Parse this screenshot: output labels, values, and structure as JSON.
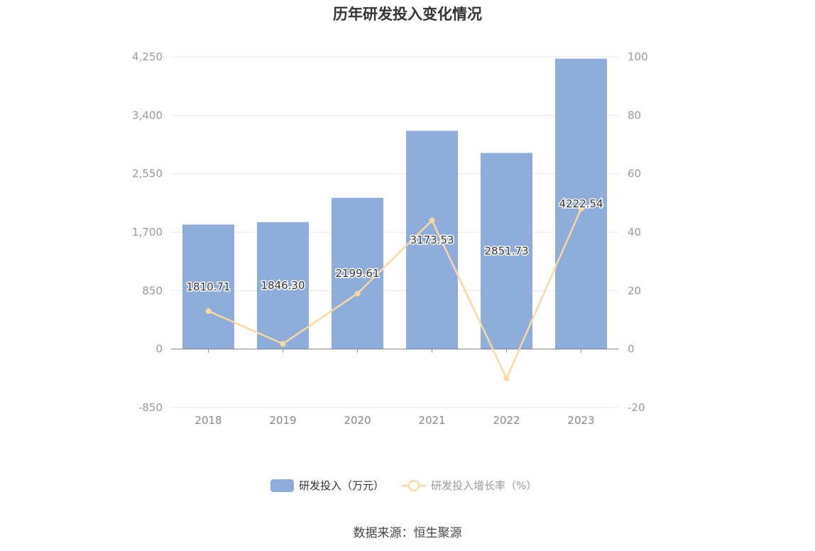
{
  "title": "历年研发投入变化情况",
  "source": "数据来源：恒生聚源",
  "colors": {
    "bar": "#8eadda",
    "line": "#fbd8a0",
    "grid": "#e3e6ef",
    "axis": "#888888"
  },
  "chart_data": {
    "type": "bar",
    "categories": [
      "2018",
      "2019",
      "2020",
      "2021",
      "2022",
      "2023"
    ],
    "series": [
      {
        "name": "研发投入（万元）",
        "type": "bar",
        "axis": "left",
        "values": [
          1810.71,
          1846.3,
          2199.61,
          3173.53,
          2851.73,
          4222.54
        ],
        "labels": [
          "1810.71",
          "1846.30",
          "2199.61",
          "3173.53",
          "2851.73",
          "4222.54"
        ]
      },
      {
        "name": "研发投入增长率（%）",
        "type": "line",
        "axis": "right",
        "values": [
          13.0,
          1.8,
          19.0,
          44.0,
          -10.0,
          48.0
        ]
      }
    ],
    "y_left": {
      "ylim": [
        -850,
        4250
      ],
      "ticks": [
        "-850",
        "0",
        "850",
        "1,700",
        "2,550",
        "3,400",
        "4,250"
      ]
    },
    "y_right": {
      "ylim": [
        -20,
        100
      ],
      "ticks": [
        "-20",
        "0",
        "20",
        "40",
        "60",
        "80",
        "100"
      ]
    },
    "grid": true,
    "legend": "bottom-center"
  }
}
